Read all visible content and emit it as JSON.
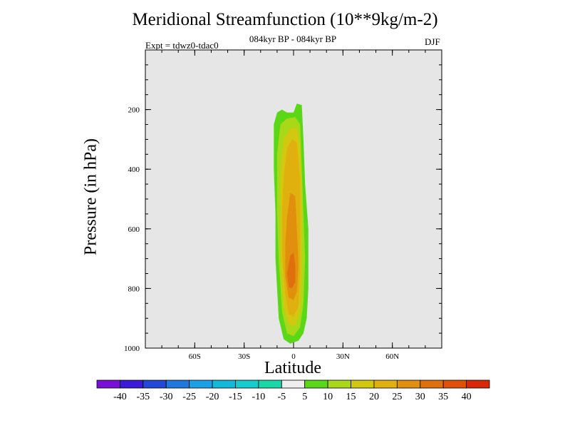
{
  "chart_data": {
    "type": "contour",
    "title": "Meridional Streamfunction (10**9kg/m-2)",
    "subtitle": "084kyr BP - 084kyr BP",
    "expt_label": "Expt = tdwz0-tdac0",
    "season": "DJF",
    "xlabel": "Latitude",
    "ylabel": "Pressure (in hPa)",
    "xlim": [
      -90,
      90
    ],
    "ylim": [
      1000,
      0
    ],
    "x_ticks": [
      {
        "value": -60,
        "label": "60S"
      },
      {
        "value": -30,
        "label": "30S"
      },
      {
        "value": 0,
        "label": "0"
      },
      {
        "value": 30,
        "label": "30N"
      },
      {
        "value": 60,
        "label": "60N"
      }
    ],
    "y_ticks": [
      {
        "value": 200,
        "label": "200"
      },
      {
        "value": 400,
        "label": "400"
      },
      {
        "value": 600,
        "label": "600"
      },
      {
        "value": 800,
        "label": "800"
      },
      {
        "value": 1000,
        "label": "1000"
      }
    ],
    "background_color": "#e6e6e6",
    "contour_levels": [
      -40,
      -35,
      -30,
      -25,
      -20,
      -15,
      -10,
      -5,
      5,
      10,
      15,
      20,
      25,
      30,
      35,
      40
    ],
    "colorbar_colors": [
      "#7a10d8",
      "#3a1ad8",
      "#2148d8",
      "#1f78e0",
      "#1aa0e6",
      "#12b8d8",
      "#14cccc",
      "#18d8a8",
      "#eeeeee",
      "#5ad818",
      "#a8d818",
      "#d2c810",
      "#e0b00e",
      "#e0900c",
      "#e0700c",
      "#e05008",
      "#d82808"
    ],
    "fill_regions": [
      {
        "level": 5,
        "color": "#5ad818",
        "polygon": [
          [
            -10,
            210
          ],
          [
            -7,
            200
          ],
          [
            -4,
            210
          ],
          [
            0,
            210
          ],
          [
            2,
            180
          ],
          [
            5,
            185
          ],
          [
            6,
            300
          ],
          [
            7,
            450
          ],
          [
            9,
            600
          ],
          [
            9,
            800
          ],
          [
            8,
            900
          ],
          [
            6,
            950
          ],
          [
            3,
            975
          ],
          [
            -2,
            985
          ],
          [
            -6,
            970
          ],
          [
            -9,
            900
          ],
          [
            -11,
            700
          ],
          [
            -11,
            550
          ],
          [
            -12,
            400
          ],
          [
            -12,
            250
          ]
        ]
      },
      {
        "level": 10,
        "color": "#a8d818",
        "polygon": [
          [
            -8,
            250
          ],
          [
            -4,
            230
          ],
          [
            1,
            225
          ],
          [
            4,
            250
          ],
          [
            5,
            400
          ],
          [
            6,
            550
          ],
          [
            7,
            700
          ],
          [
            6,
            850
          ],
          [
            4,
            930
          ],
          [
            0,
            960
          ],
          [
            -4,
            950
          ],
          [
            -7,
            880
          ],
          [
            -9,
            700
          ],
          [
            -10,
            550
          ],
          [
            -10,
            350
          ]
        ]
      },
      {
        "level": 15,
        "color": "#d2c810",
        "polygon": [
          [
            -6,
            300
          ],
          [
            -2,
            265
          ],
          [
            2,
            260
          ],
          [
            4,
            320
          ],
          [
            5,
            450
          ],
          [
            5,
            600
          ],
          [
            5,
            750
          ],
          [
            4,
            880
          ],
          [
            1,
            925
          ],
          [
            -3,
            920
          ],
          [
            -6,
            860
          ],
          [
            -8,
            700
          ],
          [
            -8,
            550
          ],
          [
            -8,
            400
          ]
        ]
      },
      {
        "level": 20,
        "color": "#e0b00e",
        "polygon": [
          [
            -4,
            330
          ],
          [
            -1,
            300
          ],
          [
            2,
            310
          ],
          [
            4,
            430
          ],
          [
            4,
            600
          ],
          [
            4,
            750
          ],
          [
            3,
            860
          ],
          [
            0,
            895
          ],
          [
            -3,
            885
          ],
          [
            -5,
            820
          ],
          [
            -7,
            680
          ],
          [
            -7,
            550
          ],
          [
            -6,
            430
          ]
        ]
      },
      {
        "level": 25,
        "color": "#e0900c",
        "polygon": [
          [
            -2,
            480
          ],
          [
            1,
            490
          ],
          [
            2,
            600
          ],
          [
            3,
            720
          ],
          [
            2,
            810
          ],
          [
            0,
            840
          ],
          [
            -3,
            830
          ],
          [
            -5,
            760
          ],
          [
            -5,
            650
          ],
          [
            -4,
            560
          ]
        ]
      },
      {
        "level": 30,
        "color": "#e0700c",
        "polygon": [
          [
            -2,
            690
          ],
          [
            0,
            680
          ],
          [
            1,
            720
          ],
          [
            1,
            780
          ],
          [
            -1,
            800
          ],
          [
            -3,
            795
          ],
          [
            -4,
            750
          ]
        ]
      }
    ]
  }
}
